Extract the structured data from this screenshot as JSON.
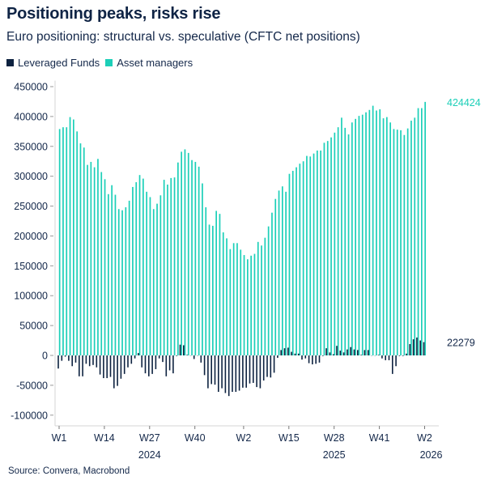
{
  "title": "Positioning peaks, risks rise",
  "subtitle": "Euro positioning: structural vs. speculative (CFTC net positions)",
  "source": "Source: Convera, Macrobond",
  "colors": {
    "leveraged_funds": "#0d2240",
    "asset_managers": "#1ccfb8",
    "text": "#14284a"
  },
  "chart_data": {
    "type": "bar",
    "frequency": "weekly",
    "x_start": "W1 2024",
    "x_end": "W2 2026",
    "ylim": [
      -118000,
      460000
    ],
    "yticks": [
      450000,
      400000,
      350000,
      300000,
      250000,
      200000,
      150000,
      100000,
      50000,
      0,
      -50000,
      -100000
    ],
    "ytick_labels": [
      "450000",
      "400000",
      "350000",
      "300000",
      "250000",
      "200000",
      "150000",
      "100000",
      "50000",
      "0",
      "-50000",
      "-100000"
    ],
    "xticks": [
      {
        "index": 0,
        "label": "W1"
      },
      {
        "index": 13,
        "label": "W14"
      },
      {
        "index": 26,
        "label": "W27"
      },
      {
        "index": 39,
        "label": "W40"
      },
      {
        "index": 53,
        "label": "W2"
      },
      {
        "index": 66,
        "label": "W15"
      },
      {
        "index": 79,
        "label": "W28"
      },
      {
        "index": 92,
        "label": "W41"
      },
      {
        "index": 105,
        "label": "W2"
      }
    ],
    "year_labels": [
      {
        "index": 26,
        "label": "2024"
      },
      {
        "index": 79,
        "label": "2025"
      },
      {
        "index": 105,
        "label": "2026"
      }
    ],
    "legend_position": "top-left",
    "grid": false,
    "series": [
      {
        "name": "Leveraged Funds",
        "values": [
          -22000,
          -9000,
          -2000,
          -9000,
          -18000,
          -12000,
          -35000,
          -35000,
          -14000,
          -18000,
          -16000,
          -20000,
          -32000,
          -38000,
          -38000,
          -36000,
          -55000,
          -51000,
          -39000,
          -31000,
          -20000,
          -14000,
          -5000,
          4000,
          -20000,
          -30000,
          -35000,
          -31000,
          -23000,
          -5000,
          -11000,
          -35000,
          -25000,
          -30000,
          -1000,
          18000,
          17000,
          1000,
          0,
          -6000,
          -500,
          -12000,
          -33000,
          -55000,
          -48000,
          -49000,
          -61000,
          -55000,
          -63000,
          -68000,
          -61000,
          -61000,
          -59000,
          -54000,
          -54000,
          -47000,
          -46000,
          -53000,
          -55000,
          -42000,
          -36000,
          -37000,
          -29000,
          -4000,
          9000,
          12000,
          13000,
          6000,
          3000,
          3000,
          -7000,
          -5000,
          -13000,
          -15000,
          -14000,
          -12000,
          -1000,
          12000,
          5000,
          2000,
          16000,
          8000,
          5000,
          10000,
          14000,
          10000,
          9000,
          1000,
          9000,
          9000,
          0,
          0,
          1000,
          -5000,
          -8000,
          -8000,
          -31000,
          -18000,
          -1000,
          -1000,
          3000,
          19000,
          27000,
          30000,
          25000,
          22279
        ],
        "last_value_label": "22279"
      },
      {
        "name": "Asset managers",
        "values": [
          379000,
          382000,
          382000,
          399000,
          395000,
          375000,
          355000,
          348000,
          319000,
          324000,
          315000,
          329000,
          307000,
          295000,
          270000,
          285000,
          269000,
          245000,
          243000,
          248000,
          259000,
          282000,
          290000,
          302000,
          296000,
          274000,
          265000,
          245000,
          254000,
          268000,
          294000,
          286000,
          297000,
          298000,
          323000,
          341000,
          345000,
          339000,
          327000,
          324000,
          316000,
          288000,
          248000,
          219000,
          217000,
          242000,
          237000,
          206000,
          196000,
          178000,
          188000,
          188000,
          177000,
          168000,
          161000,
          167000,
          170000,
          190000,
          184000,
          197000,
          216000,
          239000,
          262000,
          276000,
          283000,
          274000,
          304000,
          309000,
          315000,
          321000,
          325000,
          334000,
          333000,
          338000,
          343000,
          343000,
          356000,
          359000,
          365000,
          373000,
          382000,
          398000,
          381000,
          370000,
          390000,
          396000,
          401000,
          403000,
          407000,
          411000,
          418000,
          410000,
          412000,
          397000,
          399000,
          390000,
          379000,
          378000,
          377000,
          369000,
          380000,
          393000,
          398000,
          414000,
          414000,
          424424
        ],
        "last_value_label": "424424"
      }
    ]
  },
  "legend": [
    {
      "label": "Leveraged Funds"
    },
    {
      "label": "Asset managers"
    }
  ]
}
